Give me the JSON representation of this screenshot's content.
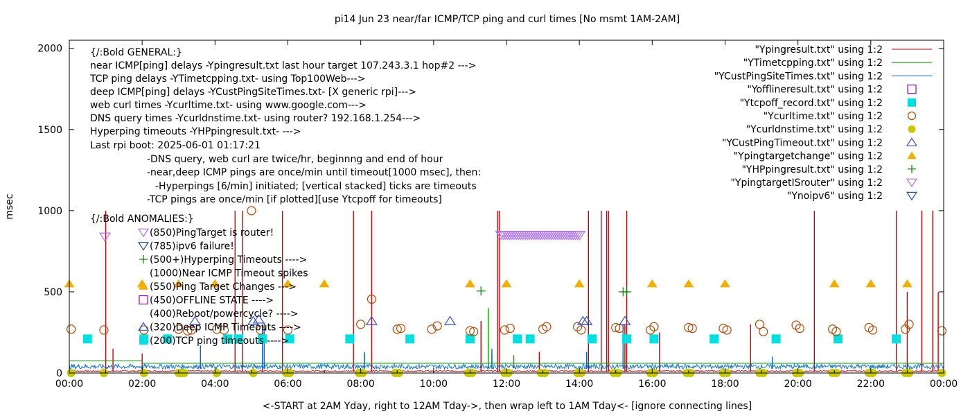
{
  "chart_data": {
    "type": "line",
    "title": "pi14 Jun 23  near/far ICMP/TCP ping and curl times [No msmt 1AM-2AM]",
    "xlabel": "<-START at 2AM Yday, right to 12AM Tday->, then wrap left to 1AM Tday<- [ignore connecting lines]",
    "ylabel": "msec",
    "xlim": [
      0,
      24
    ],
    "ylim": [
      0,
      2050
    ],
    "x_ticks": [
      "00:00",
      "02:00",
      "04:00",
      "06:00",
      "08:00",
      "10:00",
      "12:00",
      "14:00",
      "16:00",
      "18:00",
      "20:00",
      "22:00",
      "00:00"
    ],
    "y_ticks": [
      "0",
      "500",
      "1000",
      "1500",
      "2000"
    ],
    "grid": false,
    "legend_position": "top-right",
    "annotations": [
      "{/:Bold GENERAL:}",
      "near ICMP[ping] delays -Ypingresult.txt last hour target 107.243.3.1 hop#2 --->",
      "TCP ping delays -YTimetcpping.txt- using Top100Web--->",
      "deep ICMP[ping] delays -YCustPingSiteTimes.txt- [X generic rpi]--->",
      "web curl times -Ycurltime.txt- using www.google.com--->",
      "DNS query times -Ycurldnstime.txt- using router? 192.168.1.254--->",
      "Hyperping timeouts -YHPpingresult.txt- --->",
      "Last rpi boot: 2025-06-01 01:17:21",
      "-DNS query, web curl are twice/hr, beginnng and end of hour",
      "-near,deep ICMP pings are once/min until timeout[1000 msec], then:",
      "-Hyperpings [6/min] initiated; [vertical stacked] ticks are timeouts",
      "-TCP pings are once/min [if plotted][use Ytcpoff for timeouts]",
      "{/:Bold ANOMALIES:}"
    ],
    "anomaly_key": [
      {
        "symbol": "tri-down-open-violet",
        "text": "(850)PingTarget is router!"
      },
      {
        "symbol": "tri-down-open-blue",
        "text": "(785)ipv6 failure!"
      },
      {
        "symbol": "plus-green",
        "text": "(500+)Hyperping Timeouts ---->"
      },
      {
        "symbol": "none",
        "text": "(1000)Near ICMP Timeout spikes"
      },
      {
        "symbol": "tri-up-orange",
        "text": "(550)Ping Target Changes --->"
      },
      {
        "symbol": "square-open-violet",
        "text": "(450)OFFLINE STATE ---->"
      },
      {
        "symbol": "none",
        "text": "(400)Reboot/powercycle? ---->"
      },
      {
        "symbol": "tri-up-open-blue",
        "text": "(320)Deep ICMP Timeouts ---->"
      },
      {
        "symbol": "square-cyan",
        "text": "(200)TCP ping timeouts ---->"
      }
    ],
    "series": [
      {
        "name": "\"Ypingresult.txt\" using 1:2",
        "style": "line",
        "color": "#cc0000",
        "baseline": 8,
        "spikes": [
          [
            1.0,
            1000
          ],
          [
            1.2,
            150
          ],
          [
            2.0,
            120
          ],
          [
            4.55,
            1000
          ],
          [
            4.75,
            1000
          ],
          [
            5.3,
            150
          ],
          [
            5.85,
            1000
          ],
          [
            7.8,
            1000
          ],
          [
            8.3,
            1000
          ],
          [
            11.75,
            1000
          ],
          [
            11.8,
            1000
          ],
          [
            11.3,
            320
          ],
          [
            12.9,
            130
          ],
          [
            14.25,
            1000
          ],
          [
            14.6,
            1000
          ],
          [
            14.75,
            1000
          ],
          [
            14.8,
            1000
          ],
          [
            15.25,
            300
          ],
          [
            15.3,
            1000
          ],
          [
            16.2,
            250
          ],
          [
            18.7,
            300
          ],
          [
            20.45,
            1000
          ],
          [
            22.7,
            1000
          ],
          [
            23.0,
            500
          ],
          [
            23.4,
            1000
          ],
          [
            23.7,
            1000
          ],
          [
            23.85,
            500
          ]
        ]
      },
      {
        "name": "\"YTimetcpping.txt\" using 1:2",
        "style": "line",
        "color": "#00a000",
        "segments": [
          [
            0,
            2.0,
            75
          ],
          [
            2.0,
            24,
            60
          ]
        ],
        "spikes": [
          [
            8.1,
            130
          ],
          [
            11.5,
            400
          ],
          [
            11.6,
            120
          ],
          [
            12.2,
            110
          ],
          [
            15.2,
            130
          ]
        ]
      },
      {
        "name": "\"YCustPingSiteTimes.txt\" using 1:2",
        "style": "line",
        "color": "#0066cc",
        "baseline": 25,
        "spikes": [
          [
            3.6,
            170
          ],
          [
            5.3,
            300
          ],
          [
            5.35,
            310
          ],
          [
            8.1,
            120
          ],
          [
            11.6,
            150
          ],
          [
            14.2,
            130
          ],
          [
            15.2,
            300
          ],
          [
            19.3,
            100
          ]
        ]
      },
      {
        "name": "\"Yofflineresult.txt\" using 1:2",
        "style": "square-open",
        "color": "#9400d3",
        "points": []
      },
      {
        "name": "\"Ytcpoff_record.txt\" using 1:2",
        "style": "square-filled",
        "color": "#00e0e0",
        "points": [
          [
            0.5,
            210
          ],
          [
            2.05,
            210
          ],
          [
            2.7,
            210
          ],
          [
            4.35,
            210
          ],
          [
            4.65,
            210
          ],
          [
            5.3,
            210
          ],
          [
            6.05,
            210
          ],
          [
            7.7,
            210
          ],
          [
            9.35,
            210
          ],
          [
            11.0,
            210
          ],
          [
            12.3,
            210
          ],
          [
            12.65,
            210
          ],
          [
            14.35,
            210
          ],
          [
            15.3,
            210
          ],
          [
            16.05,
            210
          ],
          [
            17.7,
            210
          ],
          [
            19.4,
            210
          ],
          [
            21.1,
            210
          ],
          [
            22.7,
            210
          ]
        ]
      },
      {
        "name": "\"Ycurltime.txt\" using 1:2",
        "style": "circle-open",
        "color": "#b34700",
        "points": [
          [
            0.05,
            270
          ],
          [
            0.95,
            265
          ],
          [
            2.05,
            265
          ],
          [
            3.0,
            270
          ],
          [
            3.25,
            260
          ],
          [
            3.35,
            265
          ],
          [
            4.05,
            270
          ],
          [
            4.25,
            265
          ],
          [
            5.0,
            1000
          ],
          [
            5.25,
            265
          ],
          [
            6.0,
            265
          ],
          [
            8.0,
            300
          ],
          [
            8.3,
            455
          ],
          [
            9.0,
            270
          ],
          [
            9.1,
            275
          ],
          [
            9.95,
            270
          ],
          [
            10.1,
            290
          ],
          [
            11.0,
            260
          ],
          [
            11.1,
            255
          ],
          [
            11.95,
            265
          ],
          [
            12.1,
            275
          ],
          [
            13.0,
            270
          ],
          [
            13.1,
            285
          ],
          [
            13.95,
            285
          ],
          [
            14.05,
            265
          ],
          [
            15.0,
            280
          ],
          [
            15.1,
            275
          ],
          [
            15.95,
            265
          ],
          [
            16.05,
            285
          ],
          [
            17.0,
            280
          ],
          [
            17.1,
            275
          ],
          [
            17.95,
            275
          ],
          [
            18.05,
            265
          ],
          [
            18.95,
            300
          ],
          [
            19.05,
            255
          ],
          [
            19.95,
            295
          ],
          [
            20.05,
            275
          ],
          [
            20.95,
            270
          ],
          [
            21.05,
            255
          ],
          [
            21.95,
            280
          ],
          [
            22.05,
            265
          ],
          [
            22.95,
            270
          ],
          [
            23.05,
            300
          ],
          [
            23.95,
            260
          ]
        ]
      },
      {
        "name": "\"Ycurldnstime.txt\" using 1:2",
        "style": "circle-filled",
        "color": "#c8c800",
        "points": [
          [
            0.05,
            0
          ],
          [
            0.95,
            0
          ],
          [
            2.05,
            0
          ],
          [
            3.0,
            0
          ],
          [
            3.05,
            0
          ],
          [
            3.1,
            0
          ],
          [
            3.15,
            0
          ],
          [
            4.05,
            0
          ],
          [
            5.05,
            0
          ],
          [
            5.95,
            0
          ],
          [
            6.05,
            0
          ],
          [
            7.95,
            0
          ],
          [
            8.05,
            0
          ],
          [
            8.95,
            0
          ],
          [
            9.05,
            0
          ],
          [
            10.95,
            0
          ],
          [
            11.05,
            0
          ],
          [
            11.95,
            0
          ],
          [
            12.05,
            0
          ],
          [
            12.95,
            0
          ],
          [
            13.05,
            0
          ],
          [
            13.95,
            0
          ],
          [
            14.05,
            0
          ],
          [
            14.95,
            0
          ],
          [
            15.05,
            0
          ],
          [
            15.95,
            0
          ],
          [
            16.05,
            0
          ],
          [
            16.95,
            0
          ],
          [
            17.05,
            0
          ],
          [
            17.95,
            0
          ],
          [
            18.05,
            0
          ],
          [
            18.95,
            0
          ],
          [
            19.05,
            0
          ],
          [
            19.95,
            0
          ],
          [
            20.05,
            0
          ],
          [
            20.95,
            0
          ],
          [
            21.05,
            0
          ],
          [
            21.95,
            0
          ],
          [
            22.05,
            0
          ],
          [
            22.95,
            0
          ],
          [
            23.05,
            0
          ],
          [
            23.95,
            0
          ]
        ]
      },
      {
        "name": "\"YCustPingTimeout.txt\" using 1:2",
        "style": "tri-up-open",
        "color": "#3050d0",
        "points": [
          [
            3.45,
            320
          ],
          [
            5.05,
            320
          ],
          [
            5.2,
            330
          ],
          [
            8.3,
            320
          ],
          [
            10.45,
            320
          ],
          [
            14.1,
            320
          ],
          [
            14.2,
            320
          ],
          [
            15.25,
            320
          ]
        ]
      },
      {
        "name": "\"Ypingtargetchange\" using 1:2",
        "style": "tri-up-filled",
        "color": "#f0b000",
        "points": [
          [
            0.0,
            550
          ],
          [
            2.0,
            550
          ],
          [
            3.0,
            550
          ],
          [
            4.0,
            550
          ],
          [
            6.0,
            550
          ],
          [
            7.0,
            550
          ],
          [
            11.0,
            550
          ],
          [
            12.0,
            550
          ],
          [
            14.0,
            550
          ],
          [
            16.0,
            550
          ],
          [
            17.0,
            550
          ],
          [
            18.0,
            550
          ],
          [
            21.0,
            550
          ],
          [
            22.0,
            550
          ],
          [
            23.0,
            550
          ]
        ]
      },
      {
        "name": "\"YHPpingresult.txt\" using 1:2",
        "style": "plus",
        "color": "#008000",
        "points": [
          [
            11.3,
            505
          ],
          [
            15.2,
            500
          ],
          [
            15.3,
            500
          ]
        ]
      },
      {
        "name": "\"YpingtargetISrouter\" using 1:2",
        "style": "tri-down-open",
        "color": "#b070ff",
        "points": [
          [
            0.98,
            840
          ]
        ],
        "dense_range": [
          11.85,
          14.05,
          850
        ]
      },
      {
        "name": "\"Ynoipv6\" using 1:2",
        "style": "tri-down-open",
        "color": "#1f4fa0",
        "points": []
      }
    ]
  }
}
